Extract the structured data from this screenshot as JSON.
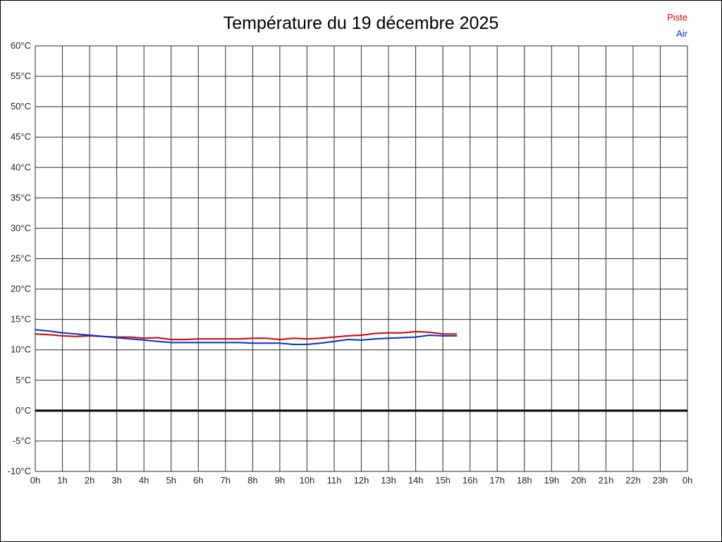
{
  "legend": {
    "piste": "Piste",
    "air": "Air"
  },
  "chart_data": {
    "type": "line",
    "title": "Température du 19 décembre 2025",
    "xlabel": "",
    "ylabel": "",
    "xlim": [
      0,
      24
    ],
    "ylim": [
      -10,
      60
    ],
    "grid": {
      "x_step": 1,
      "y_step": 5,
      "on": true
    },
    "zero_line": true,
    "legend_position": "top-right",
    "x_ticks": [
      "0h",
      "1h",
      "2h",
      "3h",
      "4h",
      "5h",
      "6h",
      "7h",
      "8h",
      "9h",
      "10h",
      "11h",
      "12h",
      "13h",
      "14h",
      "15h",
      "16h",
      "17h",
      "18h",
      "19h",
      "20h",
      "21h",
      "22h",
      "23h",
      "0h"
    ],
    "y_ticks": [
      {
        "value": 60,
        "label": "60°C"
      },
      {
        "value": 55,
        "label": "55°C"
      },
      {
        "value": 50,
        "label": "50°C"
      },
      {
        "value": 45,
        "label": "45°C"
      },
      {
        "value": 40,
        "label": "40°C"
      },
      {
        "value": 35,
        "label": "35°C"
      },
      {
        "value": 30,
        "label": "30°C"
      },
      {
        "value": 25,
        "label": "25°C"
      },
      {
        "value": 20,
        "label": "20°C"
      },
      {
        "value": 15,
        "label": "15°C"
      },
      {
        "value": 10,
        "label": "10°C"
      },
      {
        "value": 5,
        "label": "5°C"
      },
      {
        "value": 0,
        "label": "0°C"
      },
      {
        "value": -5,
        "label": "-5°C"
      },
      {
        "value": -10,
        "label": "-10°C"
      }
    ],
    "series": [
      {
        "name": "Piste",
        "color": "#d40000",
        "x": [
          0,
          0.5,
          1,
          1.5,
          2,
          2.5,
          3,
          3.5,
          4,
          4.5,
          5,
          5.5,
          6,
          6.5,
          7,
          7.5,
          8,
          8.5,
          9,
          9.5,
          10,
          10.5,
          11,
          11.5,
          12,
          12.5,
          13,
          13.5,
          14,
          14.5,
          15,
          15.5
        ],
        "y": [
          12.6,
          12.5,
          12.3,
          12.2,
          12.3,
          12.2,
          12.1,
          12.1,
          11.9,
          12.0,
          11.7,
          11.7,
          11.8,
          11.8,
          11.8,
          11.8,
          11.9,
          11.9,
          11.7,
          11.9,
          11.8,
          11.9,
          12.1,
          12.3,
          12.4,
          12.7,
          12.8,
          12.8,
          13.0,
          12.9,
          12.6,
          12.6
        ]
      },
      {
        "name": "Air",
        "color": "#0033cc",
        "x": [
          0,
          0.5,
          1,
          1.5,
          2,
          2.5,
          3,
          3.5,
          4,
          4.5,
          5,
          5.5,
          6,
          6.5,
          7,
          7.5,
          8,
          8.5,
          9,
          9.5,
          10,
          10.5,
          11,
          11.5,
          12,
          12.5,
          13,
          13.5,
          14,
          14.5,
          15,
          15.5
        ],
        "y": [
          13.3,
          13.1,
          12.8,
          12.6,
          12.4,
          12.2,
          12.0,
          11.8,
          11.6,
          11.4,
          11.2,
          11.2,
          11.2,
          11.2,
          11.2,
          11.2,
          11.1,
          11.1,
          11.1,
          10.9,
          10.9,
          11.1,
          11.4,
          11.7,
          11.6,
          11.8,
          11.9,
          12.0,
          12.1,
          12.4,
          12.3,
          12.3
        ]
      }
    ],
    "grid_color": "#2b2b2b",
    "zero_line_color": "#000000"
  }
}
